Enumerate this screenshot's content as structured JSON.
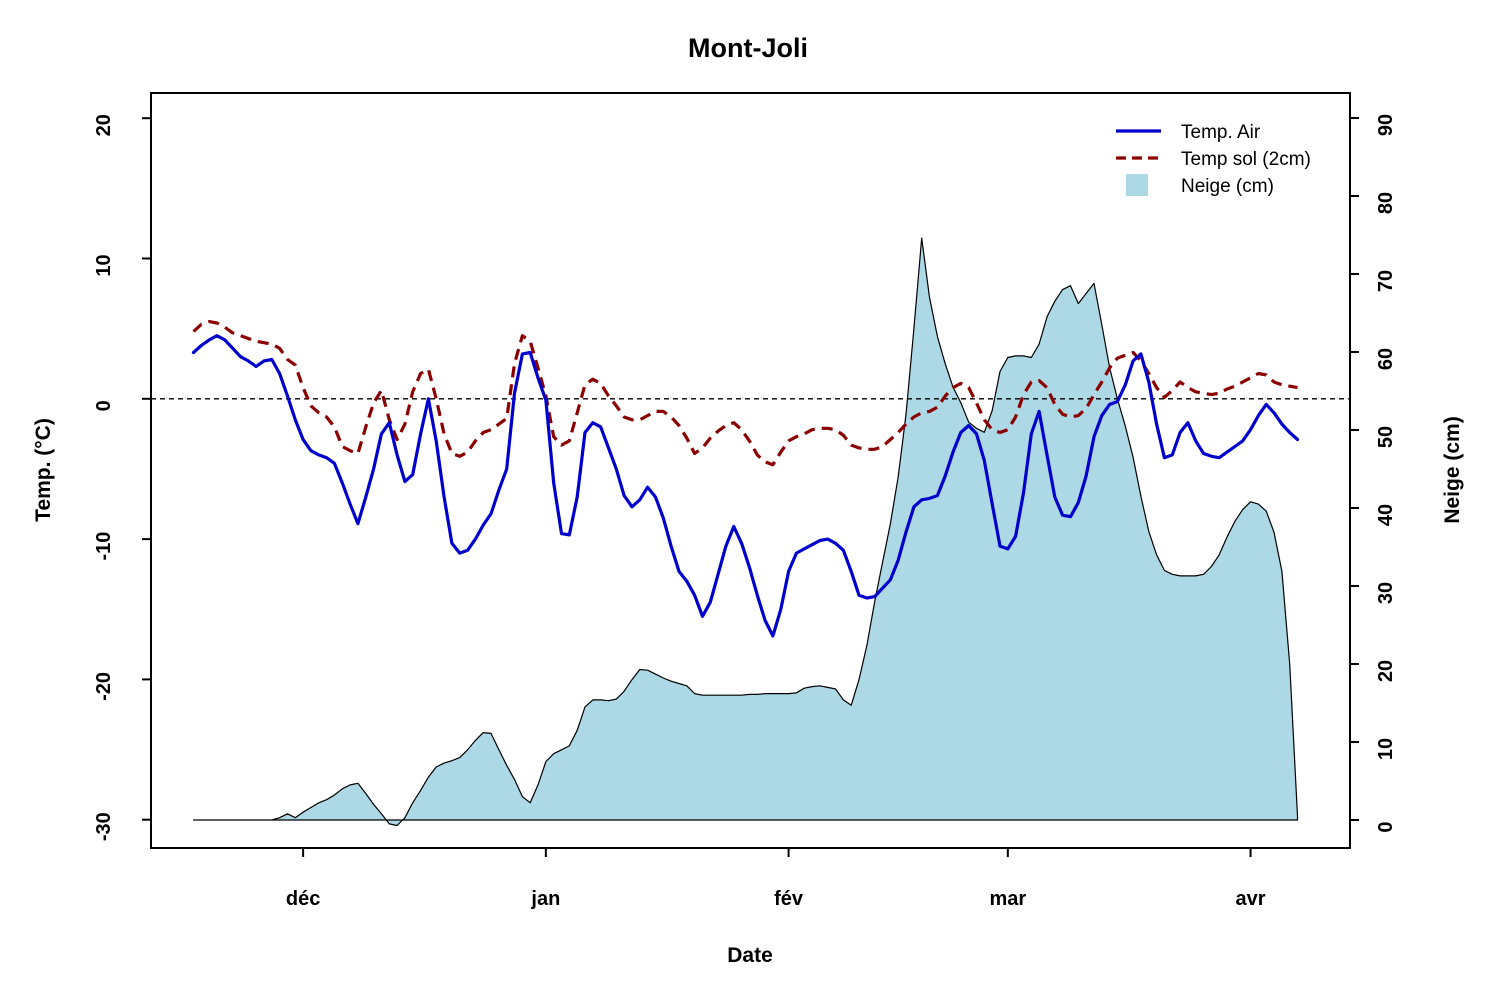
{
  "title": "Mont-Joli",
  "axes": {
    "y_left": {
      "label": "Temp. (°C)",
      "ticks": [
        "20",
        "10",
        "0",
        "-10",
        "-20",
        "-30"
      ],
      "range": [
        -32,
        22
      ]
    },
    "y_right": {
      "label": "Neige (cm)",
      "ticks": [
        "90",
        "80",
        "70",
        "60",
        "50",
        "40",
        "30",
        "20",
        "10",
        "0"
      ],
      "range": [
        -3.6,
        93.2
      ]
    },
    "x": {
      "label": "Date",
      "tick_labels": [
        "déc",
        "jan",
        "fév",
        "mar",
        "avr"
      ]
    }
  },
  "legend": {
    "position": "top-right-inside",
    "items": [
      {
        "label": "Temp. Air",
        "swatch": "solid-line",
        "color": "#0000CD"
      },
      {
        "label": "Temp sol (2cm)",
        "swatch": "dashed-line",
        "color": "#8B0000"
      },
      {
        "label": "Neige (cm)",
        "swatch": "square",
        "color": "#ADD8E6"
      }
    ]
  },
  "colors": {
    "air_line": "#0000CD",
    "soil_line": "#8B0000",
    "snow_fill": "#ADD8E6",
    "snow_border": "#000000",
    "axis": "#000000",
    "zero_line": "#000000",
    "background": "#ffffff"
  },
  "chart_data": {
    "type": "line+area",
    "title": "Mont-Joli",
    "xlabel": "Date",
    "ylabel_left": "Temp. (°C)",
    "ylabel_right": "Neige (cm)",
    "ylim_left": [
      -30,
      20
    ],
    "ylim_right": [
      0,
      90
    ],
    "grid": false,
    "zero_reference_line": 0,
    "x_unit": "days (daily values, mid-November through early April)",
    "x_tick_day_offsets": [
      14,
      45,
      76,
      104,
      135
    ],
    "x_tick_labels": [
      "déc",
      "jan",
      "fév",
      "mar",
      "avr"
    ],
    "series": [
      {
        "name": "Temp. Air",
        "axis": "left",
        "style": "solid",
        "color": "#0000CD",
        "values": [
          3.3,
          3.8,
          4.2,
          4.5,
          4.2,
          3.6,
          3.0,
          2.7,
          2.3,
          2.7,
          2.8,
          1.8,
          0.2,
          -1.5,
          -2.9,
          -3.7,
          -4.0,
          -4.2,
          -4.6,
          -6.0,
          -7.5,
          -8.9,
          -7.0,
          -5.0,
          -2.5,
          -1.7,
          -4.0,
          -5.9,
          -5.4,
          -2.5,
          0.0,
          -3.0,
          -7.0,
          -10.3,
          -11.0,
          -10.8,
          -10.0,
          -9.0,
          -8.2,
          -6.5,
          -5.0,
          0.4,
          3.2,
          3.3,
          1.5,
          -0.1,
          -6.0,
          -9.6,
          -9.7,
          -7.0,
          -2.4,
          -1.7,
          -2.0,
          -3.5,
          -5.0,
          -6.9,
          -7.7,
          -7.2,
          -6.3,
          -7.0,
          -8.5,
          -10.5,
          -12.3,
          -13.0,
          -14.0,
          -15.5,
          -14.5,
          -12.5,
          -10.5,
          -9.1,
          -10.3,
          -12.0,
          -14.0,
          -15.8,
          -16.9,
          -15.0,
          -12.3,
          -11.0,
          -10.7,
          -10.4,
          -10.1,
          -10.0,
          -10.3,
          -10.8,
          -12.3,
          -14.0,
          -14.2,
          -14.1,
          -13.5,
          -12.9,
          -11.5,
          -9.5,
          -7.7,
          -7.2,
          -7.1,
          -6.9,
          -5.5,
          -3.8,
          -2.4,
          -1.9,
          -2.5,
          -4.4,
          -7.5,
          -10.5,
          -10.7,
          -9.8,
          -6.7,
          -2.5,
          -0.9,
          -4.0,
          -7.0,
          -8.3,
          -8.4,
          -7.4,
          -5.5,
          -2.7,
          -1.2,
          -0.4,
          -0.2,
          1.0,
          2.7,
          3.2,
          1.2,
          -1.8,
          -4.2,
          -4.0,
          -2.4,
          -1.7,
          -3.0,
          -3.9,
          -4.1,
          -4.2,
          -3.8,
          -3.4,
          -3.0,
          -2.2,
          -1.2,
          -0.4,
          -1.0,
          -1.8,
          -2.4,
          -2.9
        ]
      },
      {
        "name": "Temp sol (2cm)",
        "axis": "left",
        "style": "dashed",
        "color": "#8B0000",
        "values": [
          4.8,
          5.3,
          5.5,
          5.4,
          5.1,
          4.7,
          4.5,
          4.3,
          4.1,
          4.0,
          3.9,
          3.6,
          2.8,
          2.4,
          0.8,
          -0.5,
          -1.0,
          -1.3,
          -2.0,
          -3.4,
          -3.7,
          -3.9,
          -2.0,
          -0.3,
          0.6,
          -1.5,
          -2.9,
          -1.8,
          0.5,
          1.8,
          2.1,
          0.0,
          -2.5,
          -3.9,
          -4.1,
          -3.8,
          -3.0,
          -2.4,
          -2.2,
          -1.8,
          -1.4,
          2.5,
          4.5,
          4.1,
          2.2,
          0.2,
          -2.7,
          -3.3,
          -3.0,
          -1.0,
          1.0,
          1.4,
          1.1,
          0.2,
          -0.5,
          -1.3,
          -1.5,
          -1.5,
          -1.2,
          -0.9,
          -0.9,
          -1.3,
          -1.9,
          -2.8,
          -3.9,
          -3.5,
          -2.8,
          -2.3,
          -1.9,
          -1.7,
          -2.2,
          -3.0,
          -4.0,
          -4.5,
          -4.7,
          -3.8,
          -3.0,
          -2.7,
          -2.5,
          -2.2,
          -2.1,
          -2.1,
          -2.2,
          -2.6,
          -3.3,
          -3.5,
          -3.6,
          -3.6,
          -3.4,
          -2.9,
          -2.4,
          -1.8,
          -1.3,
          -1.0,
          -0.9,
          -0.6,
          0.2,
          0.8,
          1.1,
          0.8,
          -0.3,
          -1.5,
          -2.2,
          -2.4,
          -2.2,
          -1.3,
          0.3,
          1.2,
          1.3,
          0.8,
          -0.4,
          -1.1,
          -1.3,
          -1.2,
          -0.7,
          0.3,
          1.2,
          2.2,
          2.9,
          3.1,
          3.3,
          2.7,
          1.8,
          0.8,
          0.1,
          0.6,
          1.2,
          0.8,
          0.5,
          0.4,
          0.3,
          0.4,
          0.7,
          0.9,
          1.2,
          1.5,
          1.8,
          1.7,
          1.2,
          1.0,
          0.9,
          0.8
        ]
      },
      {
        "name": "Neige (cm)",
        "axis": "right",
        "style": "filled-area",
        "color": "#ADD8E6",
        "values": [
          0,
          0,
          0,
          0,
          0,
          0,
          0,
          0,
          0,
          0,
          0,
          0.3,
          0.8,
          0.3,
          1.0,
          1.6,
          2.2,
          2.6,
          3.2,
          4.0,
          4.5,
          4.7,
          3.4,
          2.0,
          0.8,
          -0.5,
          -0.7,
          0.3,
          2.2,
          3.8,
          5.5,
          6.8,
          7.3,
          7.6,
          8.0,
          9.0,
          10.2,
          11.2,
          11.1,
          9.0,
          7.0,
          5.2,
          3.0,
          2.2,
          4.5,
          7.5,
          8.5,
          9.0,
          9.5,
          11.5,
          14.5,
          15.4,
          15.4,
          15.3,
          15.5,
          16.5,
          18.0,
          19.3,
          19.2,
          18.7,
          18.2,
          17.8,
          17.5,
          17.2,
          16.2,
          16.0,
          16.0,
          16.0,
          16.0,
          16.0,
          16.0,
          16.1,
          16.1,
          16.2,
          16.2,
          16.2,
          16.2,
          16.3,
          16.9,
          17.1,
          17.2,
          17.0,
          16.8,
          15.4,
          14.7,
          18.0,
          22.4,
          28.0,
          33.0,
          38.0,
          44.0,
          52.0,
          63.0,
          74.6,
          67.0,
          62.0,
          58.5,
          55.5,
          53.5,
          51.0,
          50.2,
          49.7,
          52.5,
          57.5,
          59.3,
          59.5,
          59.5,
          59.3,
          61.0,
          64.5,
          66.5,
          68.0,
          68.5,
          66.2,
          67.5,
          68.8,
          63.5,
          58.0,
          54.0,
          50.5,
          46.5,
          41.5,
          37.0,
          34.0,
          32.0,
          31.5,
          31.3,
          31.3,
          31.3,
          31.5,
          32.5,
          34.0,
          36.3,
          38.3,
          39.8,
          40.8,
          40.5,
          39.6,
          36.9,
          31.9,
          20.0,
          0.5
        ]
      }
    ]
  }
}
